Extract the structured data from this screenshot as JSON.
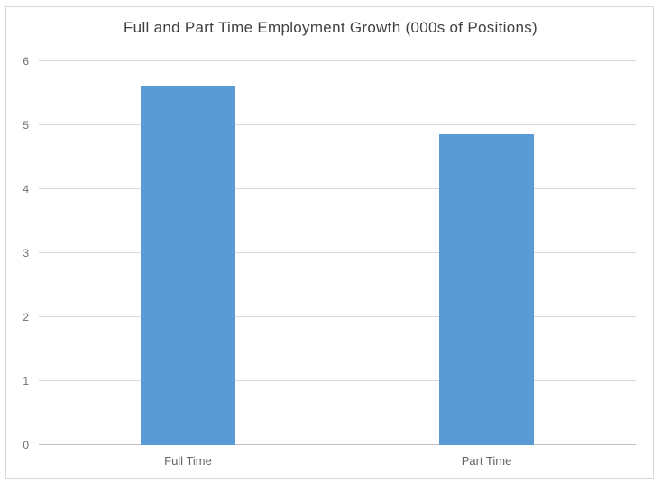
{
  "chart_data": {
    "type": "bar",
    "title": "Full and Part Time Employment Growth (000s of Positions)",
    "categories": [
      "Full Time",
      "Part Time"
    ],
    "values": [
      5.6,
      4.86
    ],
    "xlabel": "",
    "ylabel": "",
    "ylim": [
      0,
      6
    ],
    "yticks": [
      0,
      1,
      2,
      3,
      4,
      5,
      6
    ],
    "grid": true,
    "legend": "none"
  },
  "colors": {
    "bar": "#5B9BD5",
    "gridline": "#D9D9D9",
    "axis_line": "#BFBFBF",
    "title_text": "#404040",
    "tick_text": "#6E6E6E",
    "frame_border": "#D9D9D9",
    "background": "#FFFFFF"
  }
}
